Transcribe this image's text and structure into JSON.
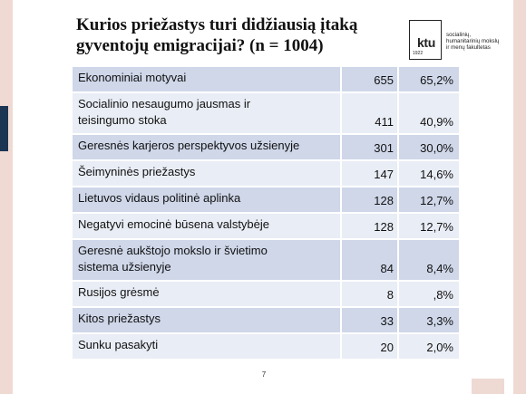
{
  "title": {
    "line1": "Kurios priežastys turi didžiausią įtaką",
    "line2": "gyventojų emigracijai? (n = 1004)"
  },
  "logo": {
    "mark": "ktu",
    "year": "1922",
    "text_lines": [
      "socialinių,",
      "humanitarinių mokslų",
      "ir menų fakultetas"
    ]
  },
  "table": {
    "rows": [
      {
        "label_lines": [
          "Ekonominiai motyvai"
        ],
        "count": "655",
        "percent": "65,2%"
      },
      {
        "label_lines": [
          "Socialinio nesaugumo jausmas ir",
          "teisingumo stoka"
        ],
        "count": "411",
        "percent": "40,9%"
      },
      {
        "label_lines": [
          "Geresnės karjeros perspektyvos užsienyje"
        ],
        "count": "301",
        "percent": "30,0%"
      },
      {
        "label_lines": [
          "Šeimyninės priežastys"
        ],
        "count": "147",
        "percent": "14,6%"
      },
      {
        "label_lines": [
          "Lietuvos vidaus politinė aplinka"
        ],
        "count": "128",
        "percent": "12,7%"
      },
      {
        "label_lines": [
          "Negatyvi emocinė būsena valstybėje"
        ],
        "count": "128",
        "percent": "12,7%"
      },
      {
        "label_lines": [
          "Geresnė aukštojo mokslo ir švietimo",
          "sistema užsienyje"
        ],
        "count": "84",
        "percent": "8,4%"
      },
      {
        "label_lines": [
          "Rusijos grėsmė"
        ],
        "count": "8",
        "percent": ",8%"
      },
      {
        "label_lines": [
          "Kitos priežastys"
        ],
        "count": "33",
        "percent": "3,3%"
      },
      {
        "label_lines": [
          "Sunku pasakyti"
        ],
        "count": "20",
        "percent": "2,0%"
      }
    ]
  },
  "page_number": "7",
  "colors": {
    "row_dark": "#cfd7e9",
    "row_light": "#e9edf5",
    "side_bar": "#efd9d3",
    "accent": "#1c3553"
  }
}
